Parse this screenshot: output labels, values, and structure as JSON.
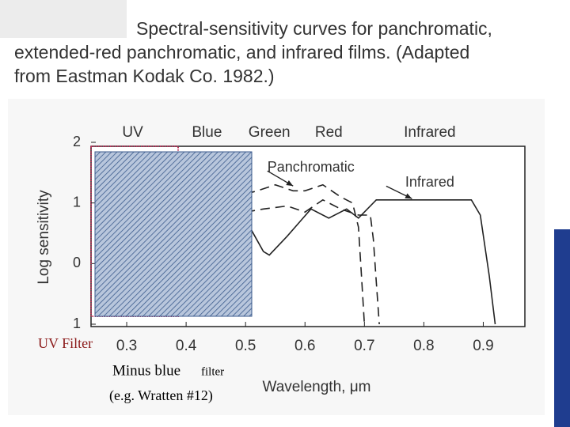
{
  "caption": [
    "Spectral-sensitivity curves for panchromatic,",
    "extended-red panchromatic, and infrared films. (Adapted",
    "from Eastman Kodak Co. 1982.)"
  ],
  "chart_data": {
    "type": "line",
    "ylabel": "Log sensitivity",
    "xlabel": "Wavelength, μm",
    "xlim": [
      0.24,
      0.97
    ],
    "ylim": [
      -1,
      2
    ],
    "xticks": [
      0.3,
      0.4,
      0.5,
      0.6,
      0.7,
      0.8,
      0.9
    ],
    "yticks": [
      2,
      1,
      0,
      {
        "value": -1,
        "label": "1"
      }
    ],
    "bands": [
      {
        "label": "UV",
        "x": 0.31
      },
      {
        "label": "Blue",
        "x": 0.435
      },
      {
        "label": "Green",
        "x": 0.54
      },
      {
        "label": "Red",
        "x": 0.64
      },
      {
        "label": "Infrared",
        "x": 0.81
      }
    ],
    "series": [
      {
        "name": "Panchromatic",
        "color": "#222222",
        "line_style": "dashed",
        "x": [
          0.5,
          0.52,
          0.55,
          0.58,
          0.6,
          0.63,
          0.66,
          0.68,
          0.69,
          0.695,
          0.7
        ],
        "values": [
          1.15,
          1.2,
          1.3,
          1.2,
          1.2,
          1.3,
          1.1,
          1.0,
          0.6,
          -0.2,
          -1
        ]
      },
      {
        "color": "#222222",
        "line_style": "dashed",
        "x": [
          0.5,
          0.53,
          0.57,
          0.6,
          0.63,
          0.66,
          0.69,
          0.71,
          0.715,
          0.72,
          0.725
        ],
        "values": [
          0.85,
          0.9,
          0.95,
          0.85,
          1.05,
          0.9,
          0.8,
          0.8,
          0.4,
          -0.3,
          -1
        ]
      },
      {
        "name": "Infrared",
        "color": "#222222",
        "line_style": "solid",
        "x": [
          0.51,
          0.53,
          0.54,
          0.57,
          0.61,
          0.64,
          0.67,
          0.69,
          0.72,
          0.8,
          0.88,
          0.895,
          0.91,
          0.92
        ],
        "values": [
          0.55,
          0.2,
          0.14,
          0.45,
          0.9,
          0.75,
          0.9,
          0.75,
          1.05,
          1.05,
          1.05,
          0.8,
          -0.2,
          -1
        ]
      }
    ],
    "annotations": [
      {
        "series": 0,
        "x": 0.61,
        "y": 1.58,
        "ax": 0.58,
        "ay": 1.28
      },
      {
        "series": 2,
        "x": 0.81,
        "y": 1.33,
        "ax": 0.78,
        "ay": 1.07
      }
    ]
  },
  "overlay": {
    "uv_filter": "UV Filter",
    "minus_blue": "Minus blue",
    "filter_word": "filter",
    "example": "(e.g. Wratten #12)"
  }
}
